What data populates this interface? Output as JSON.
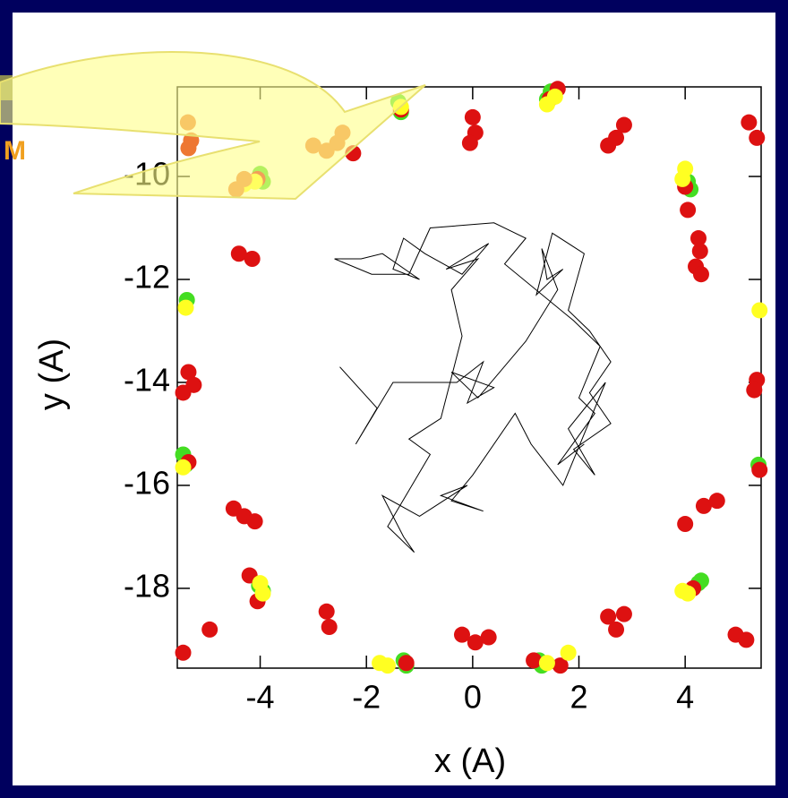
{
  "chart_data": {
    "type": "scatter",
    "xlabel": "x (A)",
    "ylabel": "y (A)",
    "annotation": "M",
    "xlim": [
      -5.56,
      5.43
    ],
    "ylim": [
      -19.55,
      -8.26
    ],
    "xticks": [
      -4,
      -2,
      0,
      2,
      4
    ],
    "yticks": [
      -18,
      -16,
      -14,
      -12,
      -10
    ],
    "series": [
      {
        "color": "#44dd22",
        "x": [
          -1.4,
          -1.35,
          1.47,
          1.4,
          -4.0,
          -3.95,
          4.05,
          4.1,
          -5.38,
          -5.45,
          -5.4,
          5.38,
          -4.02,
          -3.95,
          4.25,
          4.3,
          -1.3,
          -1.25,
          1.25,
          1.3
        ],
        "y": [
          -8.55,
          -8.75,
          -8.35,
          -8.5,
          -9.95,
          -10.1,
          -10.1,
          -10.25,
          -12.4,
          -15.4,
          -15.6,
          -15.6,
          -17.95,
          -18.05,
          -17.9,
          -17.85,
          -19.4,
          -19.5,
          -19.4,
          -19.5
        ]
      },
      {
        "color": "#dd1111",
        "x": [
          -1.35,
          1.6,
          1.45,
          0.0,
          0.05,
          -0.05,
          2.55,
          2.7,
          2.85,
          5.2,
          5.35,
          4.25,
          4.28,
          4.2,
          4.3,
          4.05,
          -4.4,
          -4.15,
          -5.35,
          -5.25,
          -5.45,
          5.35,
          5.3,
          -4.5,
          -4.3,
          -4.1,
          4.0,
          4.35,
          4.6,
          -2.75,
          -2.7,
          -4.95,
          -5.45,
          -0.2,
          0.05,
          0.3,
          2.55,
          2.7,
          2.85,
          4.95,
          5.15,
          -4.2,
          -4.05,
          4.15,
          -1.25,
          1.15,
          1.65,
          -5.35,
          5.4,
          -2.25,
          -4.05,
          4.0
        ],
        "y": [
          -8.7,
          -8.3,
          -8.5,
          -8.85,
          -9.15,
          -9.35,
          -9.4,
          -9.25,
          -9.0,
          -8.95,
          -9.25,
          -11.2,
          -11.45,
          -11.75,
          -11.9,
          -10.65,
          -11.5,
          -11.6,
          -13.8,
          -14.05,
          -14.2,
          -13.95,
          -14.15,
          -16.45,
          -16.6,
          -16.7,
          -16.75,
          -16.4,
          -16.3,
          -18.45,
          -18.75,
          -18.8,
          -19.25,
          -18.9,
          -19.05,
          -18.95,
          -18.55,
          -18.8,
          -18.5,
          -18.9,
          -19.0,
          -17.75,
          -18.25,
          -18.0,
          -19.45,
          -19.4,
          -19.5,
          -15.55,
          -15.7,
          -9.55,
          -10.05,
          -10.2
        ]
      },
      {
        "color": "#ffff22",
        "x": [
          1.4,
          1.55,
          -1.35,
          -4.1,
          -4.3,
          4.0,
          3.95,
          -5.4,
          5.4,
          -5.45,
          -3.95,
          -4.0,
          3.95,
          4.05,
          -1.6,
          -1.75,
          1.4,
          1.8
        ],
        "y": [
          -8.6,
          -8.45,
          -8.65,
          -10.1,
          -10.15,
          -9.85,
          -10.05,
          -12.55,
          -12.6,
          -15.65,
          -18.1,
          -17.9,
          -18.05,
          -18.1,
          -19.5,
          -19.45,
          -19.45,
          -19.25
        ]
      },
      {
        "color": "#ee7733",
        "x": [
          -5.36,
          -5.3,
          -5.35,
          -2.45,
          -2.55,
          -3.0,
          -2.75,
          -4.45,
          -4.3
        ],
        "y": [
          -8.95,
          -9.3,
          -9.45,
          -9.15,
          -9.35,
          -9.4,
          -9.5,
          -10.25,
          -10.05
        ]
      },
      {
        "type": "line",
        "color": "#000000",
        "x": [
          -2.5,
          -1.8,
          -2.2,
          -1.5,
          -0.3,
          0.2,
          -0.1,
          0.4,
          -0.4,
          0.1,
          1.0,
          1.6,
          1.3,
          1.4,
          1.7,
          1.2,
          1.5,
          2.1,
          1.8,
          2.2,
          2.6,
          2.2,
          2.6,
          1.9,
          2.3,
          1.8,
          2.5,
          1.7,
          1.1,
          0.8,
          0.0,
          -0.4,
          0.2,
          -0.6,
          -0.1,
          -1.0,
          -1.7,
          -1.3,
          -1.1,
          -1.6,
          -0.8,
          -1.2,
          -0.6,
          -0.2,
          -0.4,
          0.1,
          -0.5,
          0.3,
          -0.2,
          -0.9,
          -1.3,
          -1.5,
          -1.0,
          -1.7,
          -2.1,
          -2.6,
          -1.9,
          -1.2,
          -0.8,
          0.4,
          1.0,
          0.6,
          1.9,
          2.4,
          2.0,
          2.3,
          1.6,
          2.1
        ],
        "y": [
          -13.7,
          -14.5,
          -15.2,
          -14.0,
          -14.0,
          -13.6,
          -14.4,
          -14.1,
          -13.8,
          -14.3,
          -13.2,
          -12.2,
          -11.4,
          -12.0,
          -11.8,
          -12.3,
          -11.1,
          -11.5,
          -12.6,
          -13.0,
          -13.6,
          -14.2,
          -14.8,
          -15.3,
          -15.8,
          -14.9,
          -14.0,
          -16.0,
          -15.2,
          -14.6,
          -15.8,
          -16.3,
          -16.5,
          -16.2,
          -16.0,
          -16.6,
          -16.2,
          -17.0,
          -17.3,
          -16.8,
          -15.4,
          -15.1,
          -14.7,
          -13.1,
          -12.2,
          -11.6,
          -11.8,
          -11.3,
          -11.9,
          -11.5,
          -11.2,
          -11.8,
          -12.0,
          -11.5,
          -11.6,
          -11.6,
          -11.9,
          -11.9,
          -11.0,
          -10.9,
          -11.2,
          -11.7,
          -12.8,
          -13.3,
          -14.3,
          -14.6,
          -15.6,
          -15.2
        ]
      }
    ]
  }
}
